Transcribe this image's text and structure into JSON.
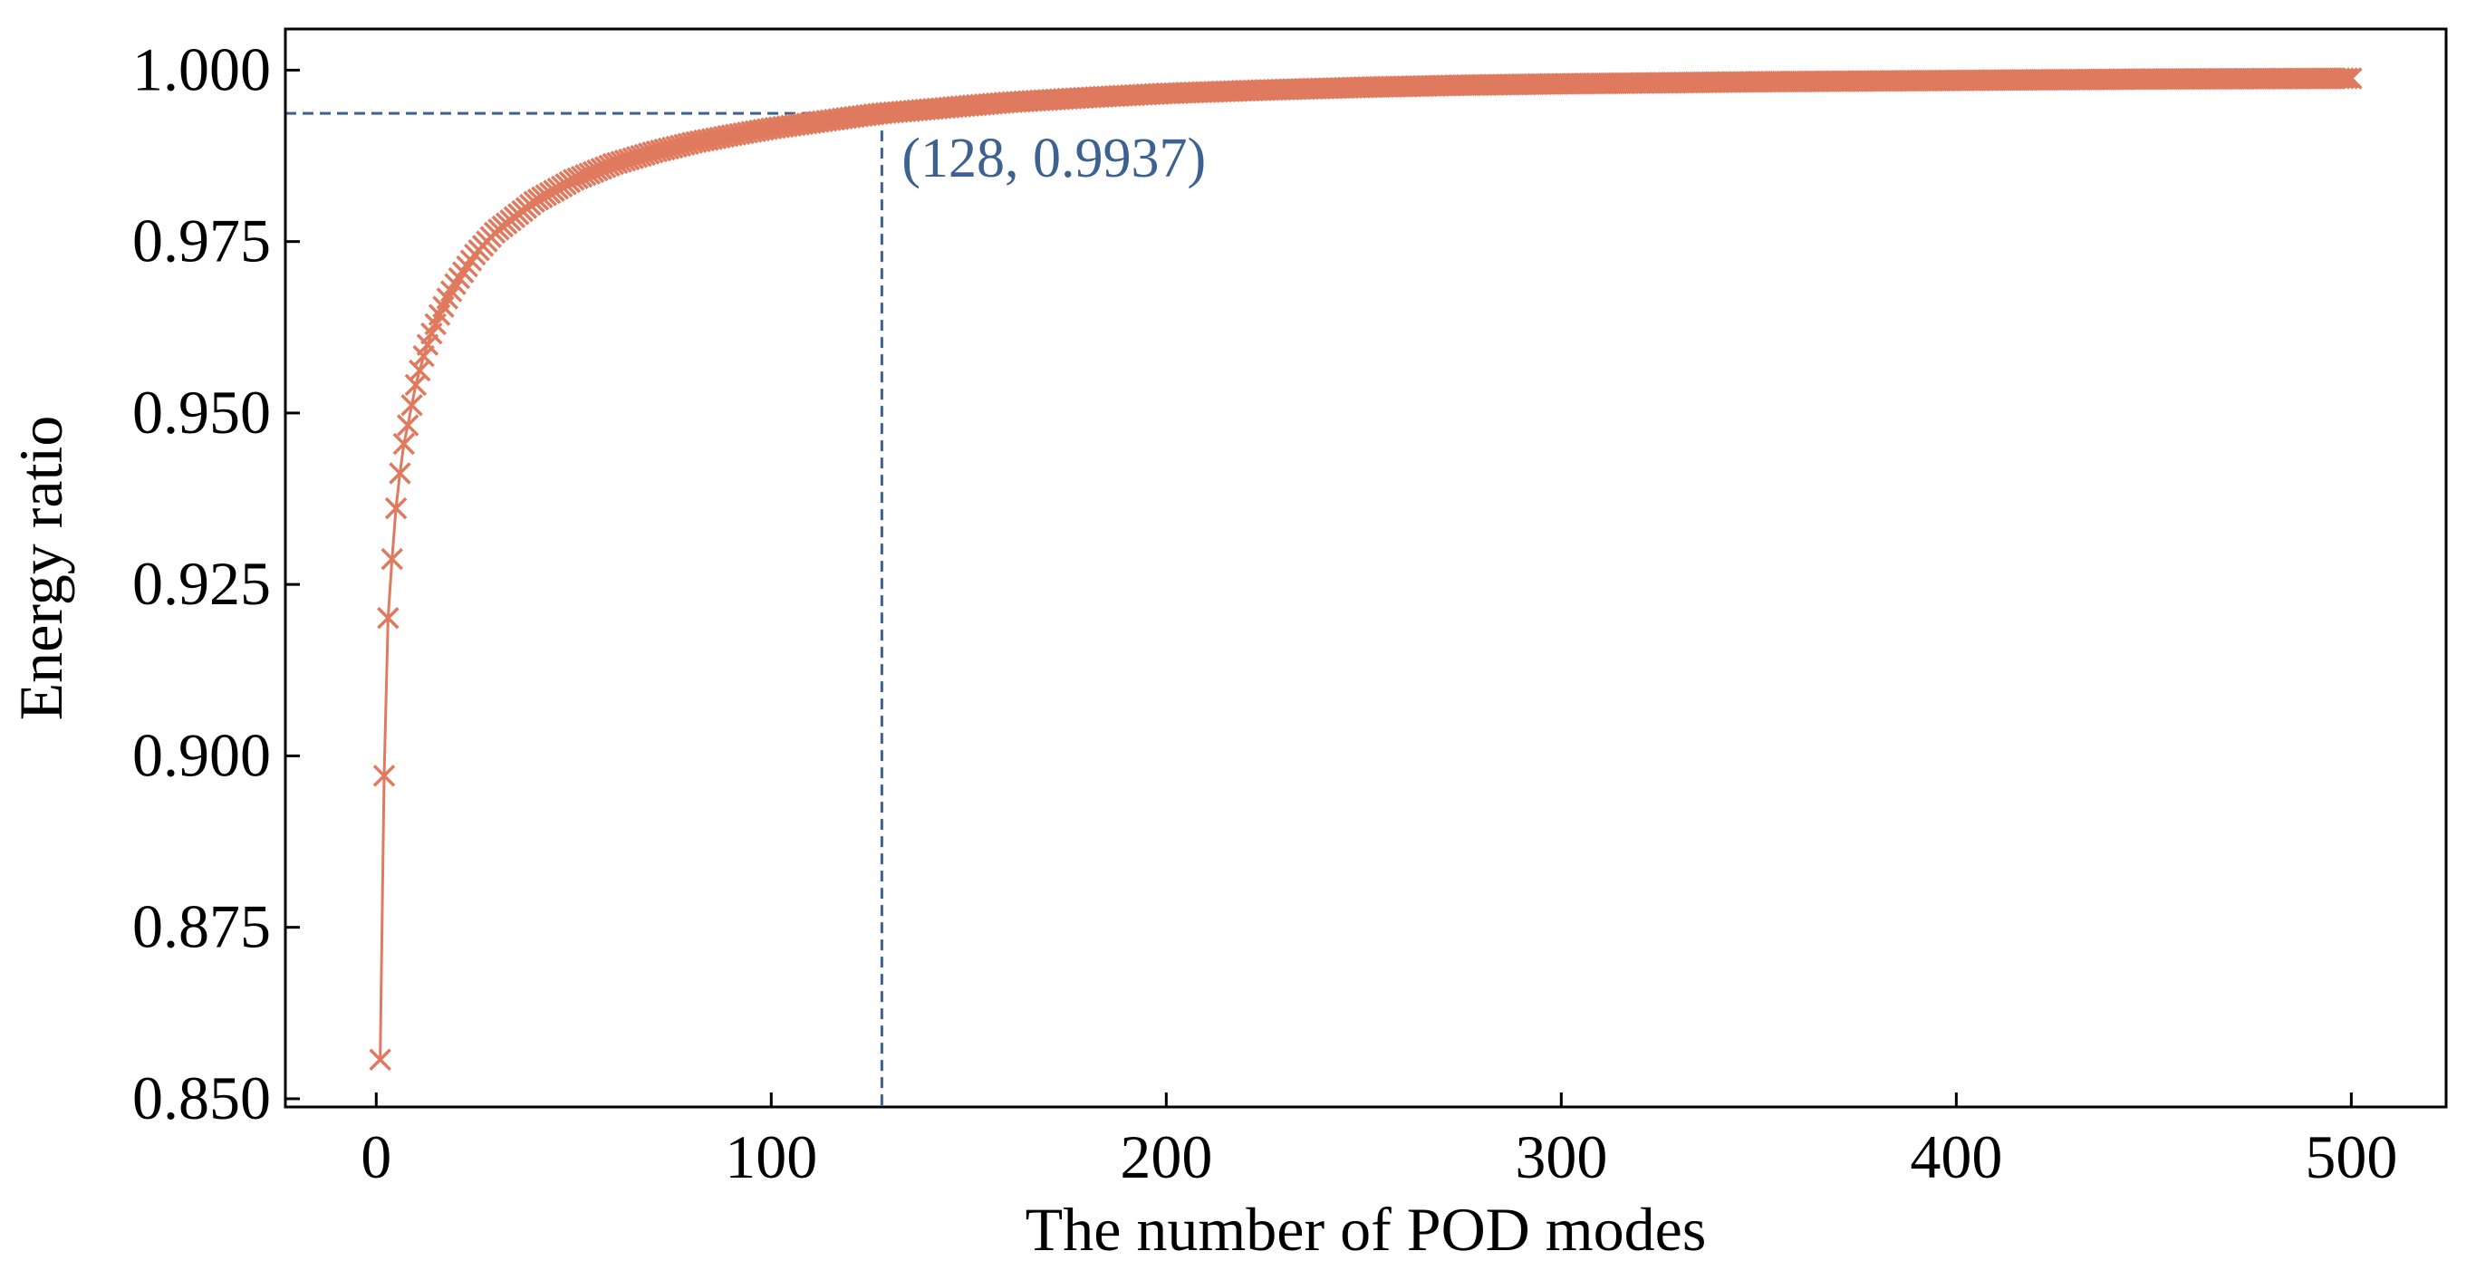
{
  "chart_data": {
    "type": "line",
    "xlabel": "The number of POD modes",
    "ylabel": "Energy ratio",
    "xlim": [
      -23,
      524
    ],
    "ylim": [
      0.8488,
      1.006
    ],
    "x_ticks": [
      0,
      100,
      200,
      300,
      400,
      500
    ],
    "y_ticks": [
      0.85,
      0.875,
      0.9,
      0.925,
      0.95,
      0.975,
      1.0
    ],
    "grid": false,
    "legend": "none",
    "marker": "x",
    "series": [
      {
        "color": "#e07a5f",
        "x": [
          1,
          2,
          3,
          4,
          5,
          6,
          7,
          8,
          10,
          12,
          14,
          16,
          18,
          20,
          25,
          30,
          40,
          50,
          60,
          70,
          80,
          90,
          100,
          110,
          120,
          128,
          140,
          160,
          180,
          200,
          225,
          250,
          275,
          300,
          350,
          400,
          450,
          500
        ],
        "y": [
          0.8557,
          0.8971,
          0.9201,
          0.9287,
          0.9361,
          0.9412,
          0.9455,
          0.9482,
          0.9541,
          0.9583,
          0.9616,
          0.9643,
          0.9667,
          0.9688,
          0.9731,
          0.9763,
          0.9808,
          0.984,
          0.9863,
          0.988,
          0.9894,
          0.9905,
          0.9915,
          0.9923,
          0.9931,
          0.9937,
          0.9943,
          0.9953,
          0.996,
          0.9966,
          0.9971,
          0.9975,
          0.9978,
          0.998,
          0.9983,
          0.9985,
          0.9987,
          0.9988
        ]
      }
    ],
    "highlight": {
      "x": 128,
      "y": 0.9937,
      "label": "(128, 0.9937)",
      "color": "#3d6191"
    }
  }
}
